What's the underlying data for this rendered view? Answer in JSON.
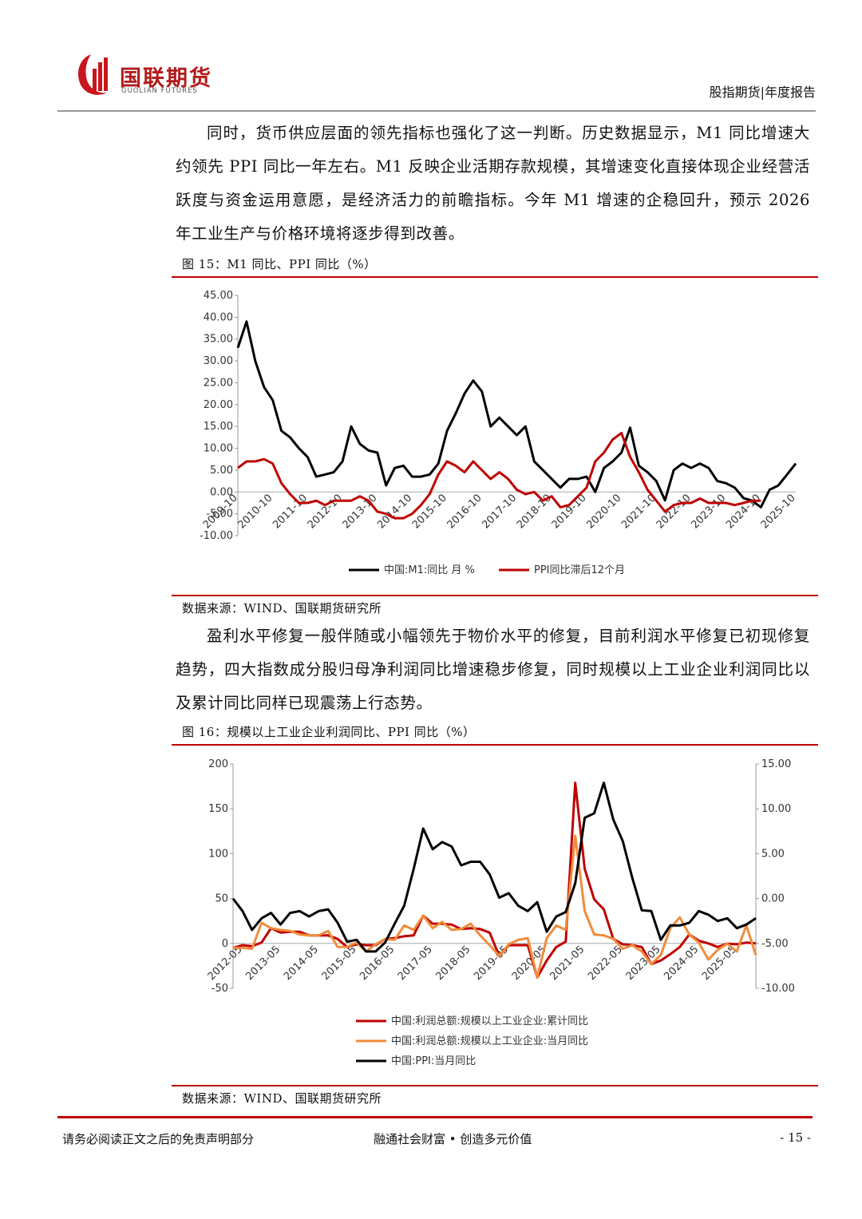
{
  "header": {
    "brand": "国联期货",
    "brand_en": "GUOLIAN FUTURES",
    "report_type": "股指期货|年度报告"
  },
  "paragraphs": [
    "同时，货币供应层面的领先指标也强化了这一判断。历史数据显示，M1 同比增速大约领先 PPI 同比一年左右。M1 反映企业活期存款规模，其增速变化直接体现企业经营活跃度与资金运用意愿，是经济活力的前瞻指标。今年 M1 增速的企稳回升，预示 2026 年工业生产与价格环境将逐步得到改善。",
    "盈利水平修复一般伴随或小幅领先于物价水平的修复，目前利润水平修复已初现修复趋势，四大指数成分股归母净利润同比增速稳步修复，同时规模以上工业企业利润同比以及累计同比同样已现震荡上行态势。"
  ],
  "chart_data": [
    {
      "type": "line",
      "title": "图 15：M1 同比、PPI 同比（%）",
      "source": "数据来源：WIND、国联期货研究所",
      "x": [
        "2009-10",
        "2010-01",
        "2010-04",
        "2010-07",
        "2010-10",
        "2011-01",
        "2011-04",
        "2011-07",
        "2011-10",
        "2012-01",
        "2012-04",
        "2012-07",
        "2012-10",
        "2013-01",
        "2013-04",
        "2013-07",
        "2013-10",
        "2014-01",
        "2014-04",
        "2014-07",
        "2014-10",
        "2015-01",
        "2015-04",
        "2015-07",
        "2015-10",
        "2016-01",
        "2016-04",
        "2016-07",
        "2016-10",
        "2017-01",
        "2017-04",
        "2017-07",
        "2017-10",
        "2018-01",
        "2018-04",
        "2018-07",
        "2018-10",
        "2019-01",
        "2019-04",
        "2019-07",
        "2019-10",
        "2020-01",
        "2020-04",
        "2020-07",
        "2020-10",
        "2021-01",
        "2021-04",
        "2021-07",
        "2021-10",
        "2022-01",
        "2022-04",
        "2022-07",
        "2022-10",
        "2023-01",
        "2023-04",
        "2023-07",
        "2023-10",
        "2024-01",
        "2024-04",
        "2024-07",
        "2024-10",
        "2025-01",
        "2025-04",
        "2025-07",
        "2025-10"
      ],
      "xticks": [
        "2009-10",
        "2010-10",
        "2011-10",
        "2012-10",
        "2013-10",
        "2014-10",
        "2015-10",
        "2016-10",
        "2017-10",
        "2018-10",
        "2019-10",
        "2020-10",
        "2021-10",
        "2022-10",
        "2023-10",
        "2024-10",
        "2025-10"
      ],
      "series": [
        {
          "name": "中国:M1:同比 月 %",
          "color": "#000000",
          "axis": "y",
          "values": [
            33,
            39,
            30,
            24,
            21,
            14,
            12.5,
            10,
            8,
            3.5,
            4,
            4.5,
            7,
            15,
            11,
            9.5,
            9,
            1.5,
            5.5,
            6,
            3.5,
            3.5,
            4,
            6.5,
            14,
            18,
            22.5,
            25.5,
            23,
            15,
            17,
            15,
            13,
            15,
            7,
            5,
            3,
            1,
            3,
            3,
            3.5,
            0,
            5.5,
            7,
            9,
            14.7,
            6,
            4.5,
            2.5,
            -1.9,
            5,
            6.5,
            5.5,
            6.5,
            5.5,
            2.5,
            2,
            1,
            -1.4,
            -2,
            -3.5,
            0.5,
            1.5,
            4,
            6.5
          ]
        },
        {
          "name": "PPI同比滞后12个月",
          "color": "#c00000",
          "axis": "y",
          "values": [
            5.5,
            7,
            7,
            7.5,
            6.5,
            2,
            -0.5,
            -2.5,
            -2.5,
            -2,
            -3,
            -2,
            -2,
            -2,
            -1,
            -2,
            -4.5,
            -5,
            -6,
            -6,
            -5,
            -3,
            -0.5,
            4,
            7,
            6,
            4.5,
            7,
            5,
            3,
            4.5,
            3,
            0.5,
            -0.5,
            0,
            -2,
            -1,
            -3.5,
            -3,
            -1,
            1,
            7,
            9,
            12,
            13.5,
            8,
            4.5,
            0.5,
            -2,
            -4.5,
            -3,
            -2.5,
            -2.5,
            -1.5,
            -2.5,
            -2.5,
            -2.5,
            -3,
            -2.5,
            -2,
            -2,
            null,
            null,
            null,
            null
          ]
        }
      ],
      "ylim": [
        -10,
        45
      ],
      "yticks": [
        {
          "value": -10,
          "label": "-10.00"
        },
        {
          "value": -5,
          "label": "-5.00"
        },
        {
          "value": 0,
          "label": "0.00"
        },
        {
          "value": 5,
          "label": "5.00"
        },
        {
          "value": 10,
          "label": "10.00"
        },
        {
          "value": 15,
          "label": "15.00"
        },
        {
          "value": 20,
          "label": "20.00"
        },
        {
          "value": 25,
          "label": "25.00"
        },
        {
          "value": 30,
          "label": "30.00"
        },
        {
          "value": 35,
          "label": "35.00"
        },
        {
          "value": 40,
          "label": "40.00"
        },
        {
          "value": 45,
          "label": "45.00"
        }
      ],
      "grid": false,
      "legend": "bottom"
    },
    {
      "type": "line",
      "title": "图 16：规模以上工业企业利润同比、PPI 同比（%）",
      "source": "数据来源：WIND、国联期货研究所",
      "x": [
        "2012-02",
        "2012-05",
        "2012-08",
        "2012-11",
        "2013-02",
        "2013-05",
        "2013-08",
        "2013-11",
        "2014-02",
        "2014-05",
        "2014-08",
        "2014-11",
        "2015-02",
        "2015-05",
        "2015-08",
        "2015-11",
        "2016-02",
        "2016-05",
        "2016-08",
        "2016-11",
        "2017-02",
        "2017-05",
        "2017-08",
        "2017-11",
        "2018-02",
        "2018-05",
        "2018-08",
        "2018-11",
        "2019-02",
        "2019-05",
        "2019-08",
        "2019-11",
        "2020-02",
        "2020-05",
        "2020-08",
        "2020-11",
        "2021-02",
        "2021-05",
        "2021-08",
        "2021-11",
        "2022-02",
        "2022-05",
        "2022-08",
        "2022-11",
        "2023-02",
        "2023-05",
        "2023-08",
        "2023-11",
        "2024-02",
        "2024-05",
        "2024-08",
        "2024-11",
        "2025-02",
        "2025-05",
        "2025-08",
        "2025-11"
      ],
      "xticks": [
        "2012-05",
        "2013-05",
        "2014-05",
        "2015-05",
        "2016-05",
        "2017-05",
        "2018-05",
        "2019-05",
        "2020-05",
        "2021-05",
        "2022-05",
        "2023-05",
        "2024-05",
        "2025-05"
      ],
      "series": [
        {
          "name": "中国:利润总额:规模以上工业企业:累计同比",
          "color": "#c00000",
          "axis": "y",
          "values": [
            -5,
            -2,
            -3,
            1,
            17,
            12,
            13,
            13,
            9,
            9,
            9,
            5,
            -4,
            -1,
            -2,
            -2,
            5,
            6,
            8,
            9,
            31,
            22,
            22,
            21,
            16,
            17,
            16,
            12,
            -14,
            -2,
            -2,
            -2,
            -38,
            -19,
            -4,
            2,
            179,
            83,
            49,
            38,
            5,
            -1,
            -2,
            -4,
            -23,
            -19,
            -12,
            -4,
            10,
            3,
            0,
            -4,
            -0.3,
            -1,
            0.9,
            0.1
          ]
        },
        {
          "name": "中国:利润总额:规模以上工业企业:当月同比",
          "color": "#f08c3c",
          "axis": "y",
          "values": [
            -5,
            -5,
            -6,
            23,
            17,
            15,
            14,
            10,
            9,
            9,
            14,
            -4,
            -4,
            1,
            -9,
            -1,
            5,
            4,
            20,
            15,
            31,
            17,
            24,
            15,
            16,
            22,
            9,
            -2,
            -14,
            -1,
            4,
            6,
            -38,
            6,
            20,
            15,
            120,
            36,
            10,
            9,
            5,
            -6,
            -2,
            -9,
            -23,
            -13,
            17,
            29,
            10,
            1,
            -18,
            -7,
            -0.3,
            -9,
            20,
            -13
          ]
        },
        {
          "name": "中国:PPI:当月同比",
          "color": "#000000",
          "axis": "y2",
          "values": [
            0,
            -1.4,
            -3.5,
            -2.2,
            -1.6,
            -2.9,
            -1.6,
            -1.4,
            -2,
            -1.4,
            -1.2,
            -2.7,
            -4.8,
            -4.6,
            -5.9,
            -5.9,
            -4.9,
            -2.8,
            -0.8,
            3.3,
            7.8,
            5.5,
            6.3,
            5.8,
            3.7,
            4.1,
            4.1,
            2.7,
            0.1,
            0.6,
            -0.8,
            -1.4,
            -0.4,
            -3.7,
            -2,
            -1.5,
            1.7,
            9,
            9.5,
            12.9,
            8.8,
            6.4,
            2.3,
            -1.3,
            -1.4,
            -4.6,
            -3,
            -3,
            -2.7,
            -1.4,
            -1.8,
            -2.5,
            -2.2,
            -3.3,
            -2.9,
            -2.2
          ]
        }
      ],
      "ylim": [
        -50,
        200
      ],
      "yticks": [
        -50,
        0,
        50,
        100,
        150,
        200
      ],
      "y2lim": [
        -10,
        15
      ],
      "y2ticks": [
        {
          "value": -10,
          "label": "-10.00"
        },
        {
          "value": -5,
          "label": "-5.00"
        },
        {
          "value": 0,
          "label": "0.00"
        },
        {
          "value": 5,
          "label": "5.00"
        },
        {
          "value": 10,
          "label": "10.00"
        },
        {
          "value": 15,
          "label": "15.00"
        }
      ],
      "grid": false,
      "legend": "bottom"
    }
  ],
  "footer": {
    "disclaimer": "请务必阅读正文之后的免责声明部分",
    "slogan": "融通社会财富 • 创造多元价值",
    "page": "- 15 -"
  }
}
